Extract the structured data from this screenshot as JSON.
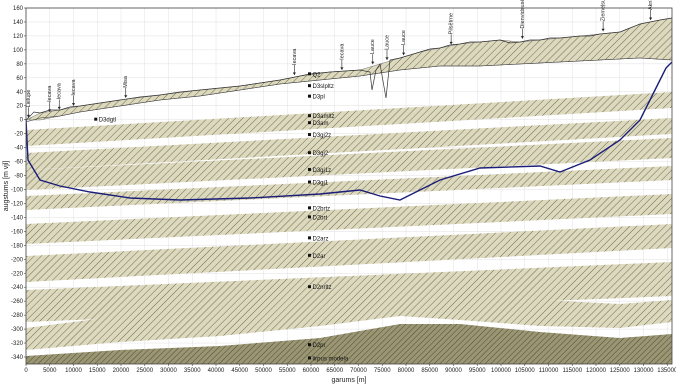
{
  "axes": {
    "xlabel": "garums [m]",
    "ylabel": "augstums [m vjl]",
    "xlim": [
      0,
      136000
    ],
    "ylim": [
      -350,
      160
    ],
    "xticks": [
      0,
      5000,
      10000,
      15000,
      20000,
      25000,
      30000,
      35000,
      40000,
      45000,
      50000,
      55000,
      60000,
      65000,
      70000,
      75000,
      80000,
      85000,
      90000,
      95000,
      100000,
      105000,
      110000,
      115000,
      120000,
      125000,
      130000,
      135000
    ],
    "yticks": [
      160,
      140,
      120,
      100,
      80,
      60,
      40,
      20,
      0,
      -20,
      -40,
      -60,
      -80,
      -100,
      -120,
      -140,
      -160,
      -180,
      -200,
      -220,
      -240,
      -260,
      -280,
      -300,
      -320,
      -340
    ]
  },
  "layer_labels": [
    {
      "text": "Q2",
      "y": 65
    },
    {
      "text": "D3slpltz",
      "y": 48
    },
    {
      "text": "D3pl",
      "y": 33
    },
    {
      "text": "D3amltz",
      "y": 5
    },
    {
      "text": "D3am",
      "y": -5
    },
    {
      "text": "D3gj2z",
      "y": -22
    },
    {
      "text": "D3gj2",
      "y": -48
    },
    {
      "text": "D3gj1z",
      "y": -72
    },
    {
      "text": "D3gj1",
      "y": -90
    },
    {
      "text": "D2brtz",
      "y": -127
    },
    {
      "text": "D2brt",
      "y": -140
    },
    {
      "text": "D2arz",
      "y": -170
    },
    {
      "text": "D2ar",
      "y": -195
    },
    {
      "text": "D2nrltz",
      "y": -240
    },
    {
      "text": "D2pr",
      "y": -323
    },
    {
      "text": "lirpus modeļa",
      "y": -342
    }
  ],
  "side_labels": [
    {
      "text": "D3dgtl",
      "x": 15000,
      "y": 0
    }
  ],
  "rivers": [
    {
      "name": "Lielupe",
      "x": 500
    },
    {
      "name": "Iecava",
      "x": 5000
    },
    {
      "name": "Iecava",
      "x": 7000
    },
    {
      "name": "Iecava",
      "x": 10000
    },
    {
      "name": "Misa",
      "x": 21000
    },
    {
      "name": "Iecava",
      "x": 56500
    },
    {
      "name": "Iecava",
      "x": 66500
    },
    {
      "name": "Lauce",
      "x": 73000
    },
    {
      "name": "Lauce",
      "x": 76000
    },
    {
      "name": "Lauce",
      "x": 79500
    },
    {
      "name": "Pilsētrne",
      "x": 89500
    },
    {
      "name": "Dienvidsusēja",
      "x": 104500
    },
    {
      "name": "Ziemeļsusēja",
      "x": 121500
    },
    {
      "name": "Aknīste",
      "x": 131500
    }
  ],
  "colors": {
    "hatch_fill": "#ddd9bf",
    "hatch_line": "#6e6a4c",
    "dark_fill": "#7d7a5a",
    "boundary": "#1a1e78",
    "grid": "#d8d8d8"
  }
}
